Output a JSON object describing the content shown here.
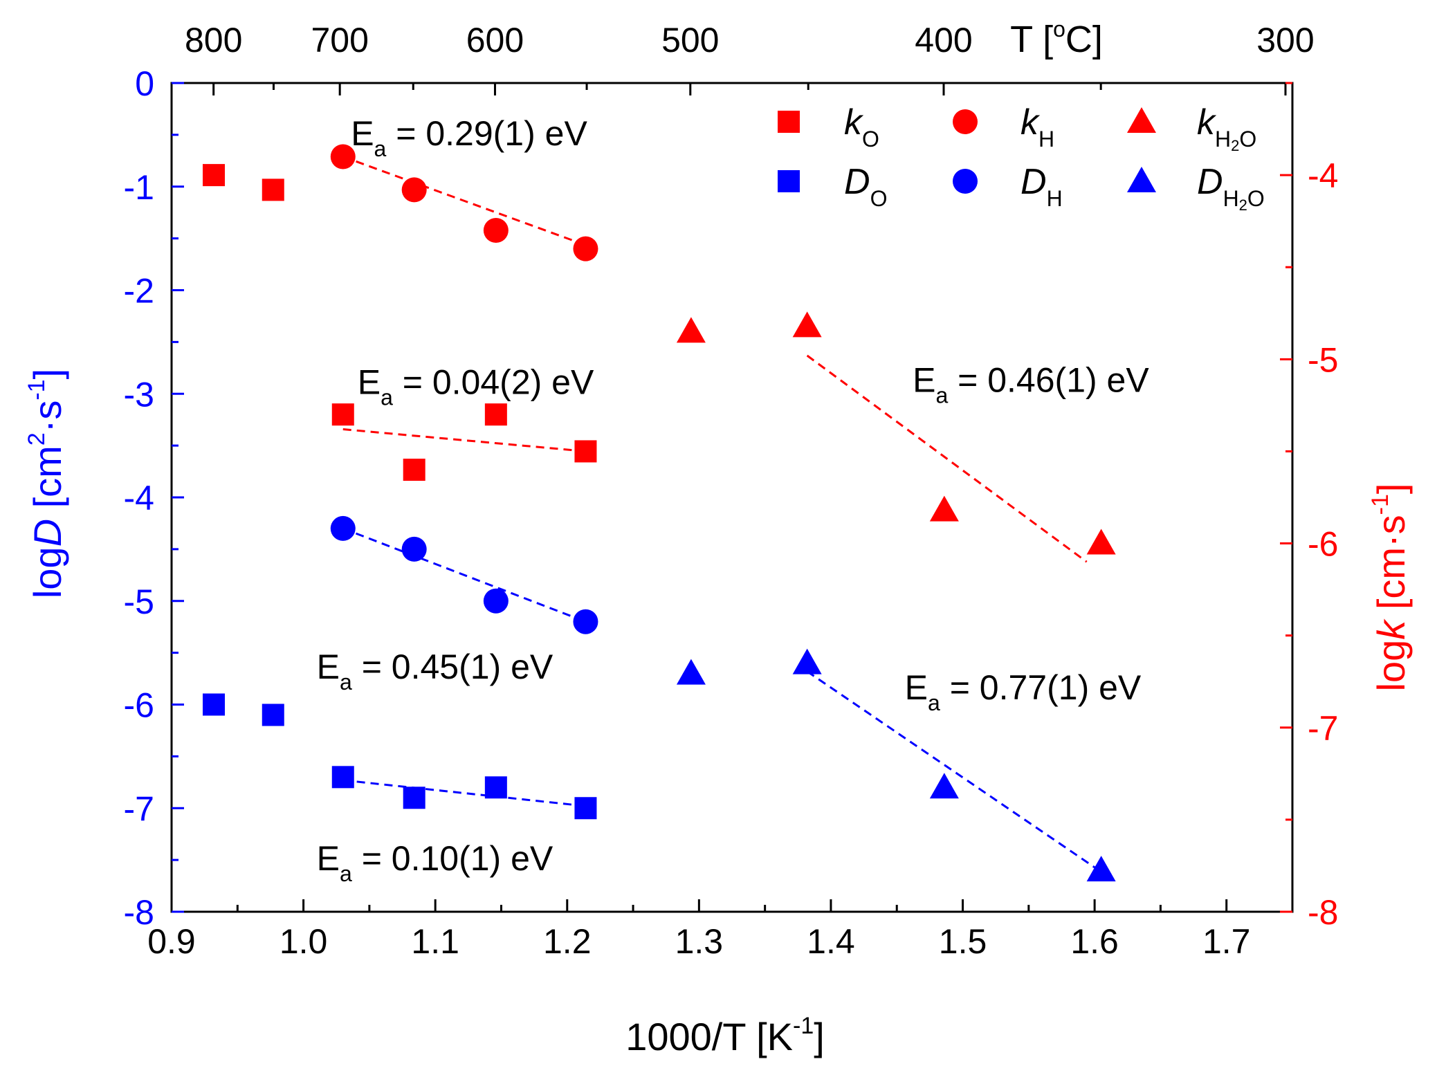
{
  "chart_data": {
    "type": "scatter",
    "title": "",
    "xlabel": "1000/T [K",
    "xlabel_sup": "-1",
    "xlabel_close": "]",
    "xlim": [
      0.9,
      1.75
    ],
    "xticks": [
      0.9,
      1.0,
      1.1,
      1.2,
      1.3,
      1.4,
      1.5,
      1.6,
      1.7
    ],
    "xtick_labels": [
      "0.9",
      "1.0",
      "1.1",
      "1.2",
      "1.3",
      "1.4",
      "1.5",
      "1.6",
      "1.7"
    ],
    "ylabel_left": {
      "prefix": "log",
      "italic": "D",
      "unit": " [cm",
      "sup1": "2",
      "mid": "·s",
      "sup2": "-1",
      "close": "]"
    },
    "ylabel_right": {
      "prefix": "log",
      "italic": "k",
      "unit": " [cm·s",
      "sup": "-1",
      "close": "]"
    },
    "ylim_left": [
      -8,
      0
    ],
    "ylim_right": [
      -8,
      -3.5
    ],
    "yticks_left": [
      0,
      -1,
      -2,
      -3,
      -4,
      -5,
      -6,
      -7,
      -8
    ],
    "ytick_labels_left": [
      "0",
      "-1",
      "-2",
      "-3",
      "-4",
      "-5",
      "-6",
      "-7",
      "-8"
    ],
    "yticks_right": [
      -4,
      -5,
      -6,
      -7,
      -8
    ],
    "ytick_labels_right": [
      "-4",
      "-5",
      "-6",
      "-7",
      "-8"
    ],
    "top_axis_label": "T [",
    "top_axis_label_sup": "o",
    "top_axis_label_close": "C]",
    "top_ticks_celsius": [
      800,
      700,
      600,
      500,
      400,
      300
    ],
    "top_tick_labels": [
      "800",
      "700",
      "600",
      "500",
      "400",
      "300"
    ],
    "colors": {
      "k": "#ff0000",
      "D": "#0000ff",
      "axis_left": "#0000ff",
      "axis_right": "#ff0000",
      "text": "#000000"
    },
    "series": [
      {
        "name": "kO",
        "axis": "right",
        "marker": "square",
        "color": "#ff0000",
        "x": [
          0.932,
          0.977,
          1.03,
          1.084,
          1.146,
          1.214
        ],
        "y": [
          -4.0,
          -4.08,
          -5.3,
          -5.6,
          -5.3,
          -5.5
        ]
      },
      {
        "name": "kH",
        "axis": "right",
        "marker": "circle",
        "color": "#ff0000",
        "x": [
          1.03,
          1.084,
          1.146,
          1.214
        ],
        "y": [
          -3.9,
          -4.08,
          -4.3,
          -4.4
        ]
      },
      {
        "name": "kH2O",
        "axis": "right",
        "marker": "triangle",
        "color": "#ff0000",
        "x": [
          1.294,
          1.382,
          1.486,
          1.605
        ],
        "y": [
          -4.85,
          -4.82,
          -5.82,
          -6.0
        ]
      },
      {
        "name": "DO",
        "axis": "left",
        "marker": "square",
        "color": "#0000ff",
        "x": [
          0.932,
          0.977,
          1.03,
          1.084,
          1.146,
          1.214
        ],
        "y": [
          -6.0,
          -6.1,
          -6.7,
          -6.9,
          -6.8,
          -7.0
        ]
      },
      {
        "name": "DH",
        "axis": "left",
        "marker": "circle",
        "color": "#0000ff",
        "x": [
          1.03,
          1.084,
          1.146,
          1.214
        ],
        "y": [
          -4.3,
          -4.5,
          -5.0,
          -5.2
        ]
      },
      {
        "name": "DH2O",
        "axis": "left",
        "marker": "triangle",
        "color": "#0000ff",
        "x": [
          1.294,
          1.382,
          1.486,
          1.605
        ],
        "y": [
          -5.7,
          -5.6,
          -6.8,
          -7.6
        ]
      }
    ],
    "fit_lines": [
      {
        "axis": "right",
        "color": "#ff0000",
        "x": [
          1.03,
          1.214
        ],
        "y": [
          -3.9,
          -4.38
        ]
      },
      {
        "axis": "right",
        "color": "#ff0000",
        "x": [
          1.03,
          1.214
        ],
        "y": [
          -5.38,
          -5.5
        ]
      },
      {
        "axis": "right",
        "color": "#ff0000",
        "x": [
          1.382,
          1.594
        ],
        "y": [
          -4.98,
          -6.1
        ]
      },
      {
        "axis": "left",
        "color": "#0000ff",
        "x": [
          1.03,
          1.214
        ],
        "y": [
          -4.3,
          -5.2
        ]
      },
      {
        "axis": "left",
        "color": "#0000ff",
        "x": [
          1.03,
          1.214
        ],
        "y": [
          -6.73,
          -6.98
        ]
      },
      {
        "axis": "left",
        "color": "#0000ff",
        "x": [
          1.382,
          1.601
        ],
        "y": [
          -5.68,
          -7.58
        ]
      }
    ],
    "annotations": [
      {
        "id": "ea1",
        "value": " = 0.29(1) eV",
        "x": 1.036,
        "y": -0.6
      },
      {
        "id": "ea2",
        "value": " = 0.04(2) eV",
        "x": 1.041,
        "y": -3.0
      },
      {
        "id": "ea3",
        "value": " = 0.46(1) eV",
        "x": 1.462,
        "y": -2.98
      },
      {
        "id": "ea4",
        "value": " = 0.45(1) eV",
        "x": 1.01,
        "y": -5.75
      },
      {
        "id": "ea5",
        "value": " = 0.77(1) eV",
        "x": 1.456,
        "y": -5.95
      },
      {
        "id": "ea6",
        "value": " = 0.10(1) eV",
        "x": 1.01,
        "y": -7.6
      }
    ],
    "annotation_symbol": "E",
    "annotation_sub": "a",
    "legend": {
      "placement": "top-right",
      "entries": [
        {
          "series": "kO",
          "base": "k",
          "sub": "O",
          "sub2": "",
          "sub3": ""
        },
        {
          "series": "kH",
          "base": "k",
          "sub": "H",
          "sub2": "",
          "sub3": ""
        },
        {
          "series": "kH2O",
          "base": "k",
          "sub": "H",
          "sub2": "2",
          "sub3": "O"
        },
        {
          "series": "DO",
          "base": "D",
          "sub": "O",
          "sub2": "",
          "sub3": ""
        },
        {
          "series": "DH",
          "base": "D",
          "sub": "H",
          "sub2": "",
          "sub3": ""
        },
        {
          "series": "DH2O",
          "base": "D",
          "sub": "H",
          "sub2": "2",
          "sub3": "O"
        }
      ]
    }
  }
}
